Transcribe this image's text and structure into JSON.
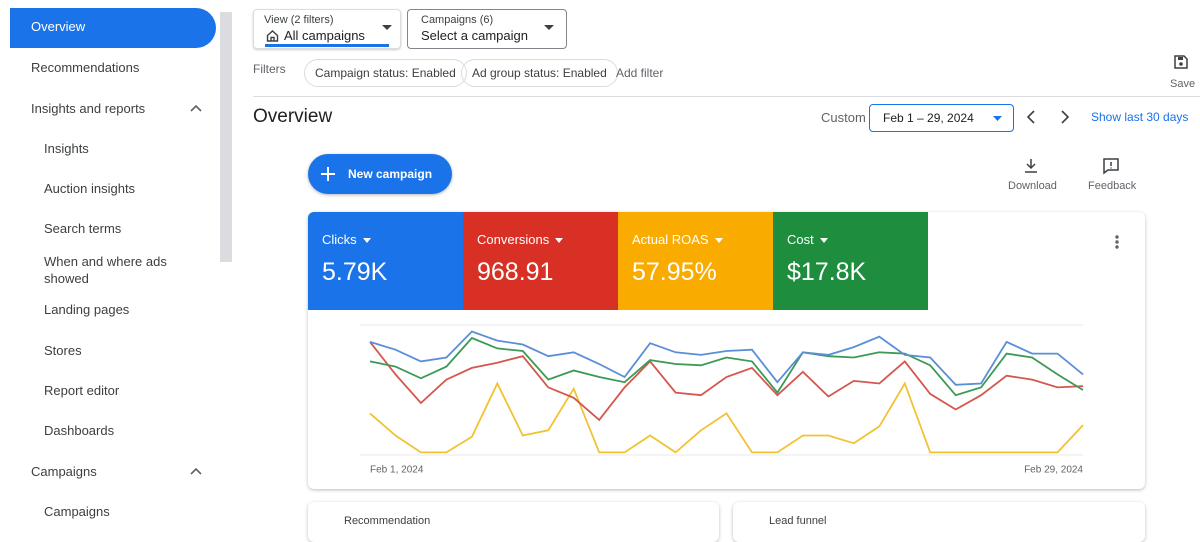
{
  "sidebar": {
    "items": [
      "Overview",
      "Recommendations",
      "Insights and reports",
      "Insights",
      "Auction insights",
      "Search terms",
      "When and where ads showed",
      "Landing pages",
      "Stores",
      "Report editor",
      "Dashboards",
      "Campaigns",
      "Campaigns"
    ]
  },
  "toolbar": {
    "view_label": "View (2 filters)",
    "view_value": "All campaigns",
    "campaigns_label": "Campaigns (6)",
    "campaigns_value": "Select a campaign",
    "save": "Save"
  },
  "filters": {
    "label": "Filters",
    "chips": [
      "Campaign status: Enabled",
      "Ad group status: Enabled"
    ],
    "add": "Add filter"
  },
  "header": {
    "title": "Overview",
    "range_label": "Custom",
    "date_range": "Feb 1 – 29, 2024",
    "show_last": "Show last 30 days"
  },
  "actions": {
    "new_campaign": "New campaign",
    "download": "Download",
    "feedback": "Feedback"
  },
  "scorecards": [
    {
      "label": "Clicks",
      "value": "5.79K",
      "color": "#1a73e8"
    },
    {
      "label": "Conversions",
      "value": "968.91",
      "color": "#d93025"
    },
    {
      "label": "Actual ROAS",
      "value": "57.95%",
      "color": "#f9ab00"
    },
    {
      "label": "Cost",
      "value": "$17.8K",
      "color": "#1e8e3e"
    }
  ],
  "chart_data": {
    "type": "line",
    "categories": [
      "Feb 1, 2024",
      null,
      null,
      null,
      null,
      null,
      null,
      null,
      null,
      null,
      null,
      null,
      null,
      null,
      null,
      null,
      null,
      null,
      null,
      null,
      null,
      null,
      null,
      null,
      null,
      null,
      null,
      null,
      "Feb 29, 2024"
    ],
    "ylim": [
      0,
      100
    ],
    "series": [
      {
        "color": "#5a8fd6",
        "values": [
          87,
          81,
          72,
          75,
          95,
          88,
          85,
          76,
          79,
          70,
          60,
          86,
          79,
          77,
          80,
          81,
          56,
          79,
          77,
          83,
          91,
          77,
          75,
          54,
          55,
          87,
          78,
          78,
          62
        ]
      },
      {
        "color": "#3c9a55",
        "values": [
          72,
          68,
          59,
          68,
          90,
          82,
          80,
          58,
          65,
          60,
          56,
          73,
          70,
          69,
          75,
          72,
          48,
          79,
          76,
          75,
          79,
          78,
          69,
          46,
          52,
          78,
          75,
          62,
          50
        ]
      },
      {
        "color": "#d4574d",
        "values": [
          87,
          62,
          40,
          58,
          67,
          71,
          76,
          52,
          44,
          27,
          52,
          72,
          48,
          46,
          60,
          67,
          46,
          64,
          45,
          57,
          55,
          72,
          47,
          35,
          46,
          61,
          58,
          52,
          53
        ]
      },
      {
        "color": "#f1c232",
        "values": [
          32,
          15,
          2,
          2,
          14,
          55,
          15,
          19,
          51,
          2,
          2,
          15,
          2,
          19,
          32,
          2,
          2,
          15,
          15,
          9,
          22,
          55,
          2,
          2,
          2,
          2,
          2,
          2,
          23
        ]
      }
    ]
  },
  "cards": [
    "Recommendation",
    "Lead funnel"
  ]
}
